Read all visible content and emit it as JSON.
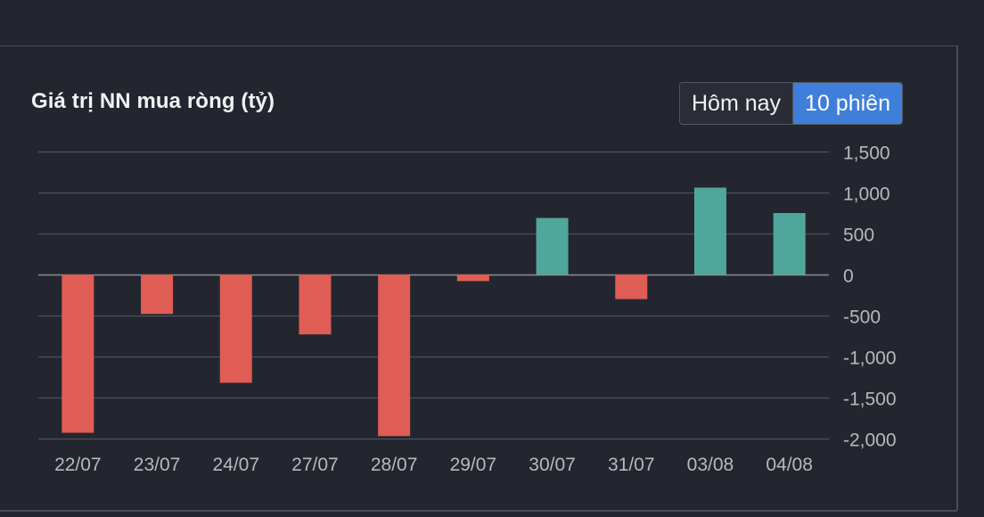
{
  "header": {
    "title": "Giá trị NN mua ròng (tỷ)"
  },
  "range_toggle": {
    "options": [
      "Hôm nay",
      "10 phiên"
    ],
    "selected": "10 phiên"
  },
  "colors": {
    "positive": "#4fa79b",
    "negative": "#e05d55",
    "grid": "#4e525a",
    "zero_line": "#8a8d93",
    "tick_text": "#b7b9bd",
    "accent": "#3f7fdb"
  },
  "chart_data": {
    "type": "bar",
    "title": "Giá trị NN mua ròng (tỷ)",
    "categories": [
      "22/07",
      "23/07",
      "24/07",
      "27/07",
      "28/07",
      "29/07",
      "30/07",
      "31/07",
      "03/08",
      "04/08"
    ],
    "values": [
      -1930,
      -480,
      -1320,
      -730,
      -1970,
      -80,
      690,
      -300,
      1060,
      750
    ],
    "ylim": [
      -2000,
      1500
    ],
    "yticks": [
      1500,
      1000,
      500,
      0,
      -500,
      -1000,
      -1500,
      -2000
    ],
    "ytick_labels": [
      "1,500",
      "1,000",
      "500",
      "0",
      "-500",
      "-1,000",
      "-1,500",
      "-2,000"
    ],
    "y_axis_position": "right",
    "grid": true,
    "legend": "none"
  }
}
